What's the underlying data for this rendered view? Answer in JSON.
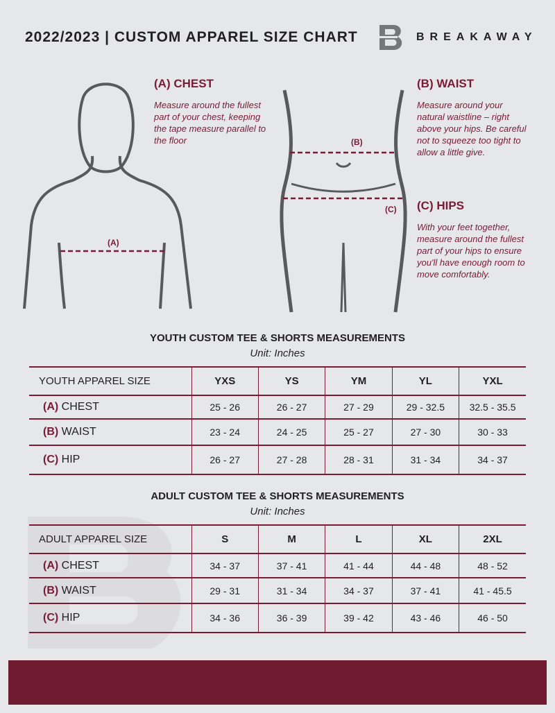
{
  "header": {
    "title": "2022/2023  |  CUSTOM APPAREL SIZE CHART",
    "brand": "BREAKAWAY",
    "logo_letter": "B"
  },
  "measures": {
    "chest": {
      "title": "(A) CHEST",
      "desc": "Measure around the fullest part of your chest, keeping the tape measure parallel to the floor",
      "marker": "(A)"
    },
    "waist": {
      "title": "(B) WAIST",
      "desc": "Measure around your natural waistline – right above your hips. Be careful not to squeeze too tight to allow a little give.",
      "marker": "(B)"
    },
    "hips": {
      "title": "(C) HIPS",
      "desc": "With your feet together, measure around the fullest part of your hips to ensure you'll have enough room to move comfortably.",
      "marker": "(C)"
    }
  },
  "youth": {
    "title": "YOUTH CUSTOM TEE & SHORTS MEASUREMENTS",
    "unit": "Unit: Inches",
    "header": "YOUTH APPAREL SIZE",
    "sizes": [
      "YXS",
      "YS",
      "YM",
      "YL",
      "YXL"
    ],
    "rows": [
      {
        "tag": "(A)",
        "label": "CHEST",
        "values": [
          "25 - 26",
          "26 - 27",
          "27 - 29",
          "29 - 32.5",
          "32.5 - 35.5"
        ]
      },
      {
        "tag": "(B)",
        "label": "WAIST",
        "values": [
          "23 - 24",
          "24 - 25",
          "25 - 27",
          "27 - 30",
          "30 - 33"
        ]
      },
      {
        "tag": "(C)",
        "label": "HIP",
        "values": [
          "26 - 27",
          "27 - 28",
          "28 - 31",
          "31 - 34",
          "34 - 37"
        ]
      }
    ]
  },
  "adult": {
    "title": "ADULT CUSTOM TEE & SHORTS MEASUREMENTS",
    "unit": "Unit: Inches",
    "header": "ADULT APPAREL SIZE",
    "sizes": [
      "S",
      "M",
      "L",
      "XL",
      "2XL"
    ],
    "rows": [
      {
        "tag": "(A)",
        "label": "CHEST",
        "values": [
          "34 - 37",
          "37 - 41",
          "41 - 44",
          "44 - 48",
          "48 - 52"
        ]
      },
      {
        "tag": "(B)",
        "label": "WAIST",
        "values": [
          "29 - 31",
          "31 - 34",
          "34 - 37",
          "37 - 41",
          "41 - 45.5"
        ]
      },
      {
        "tag": "(C)",
        "label": "HIP",
        "values": [
          "34 - 36",
          "36 - 39",
          "39 - 42",
          "43 - 46",
          "46 - 50"
        ]
      }
    ]
  },
  "colors": {
    "accent": "#7a1a35",
    "footer": "#6f1a2e",
    "background": "#e6e7e9"
  }
}
